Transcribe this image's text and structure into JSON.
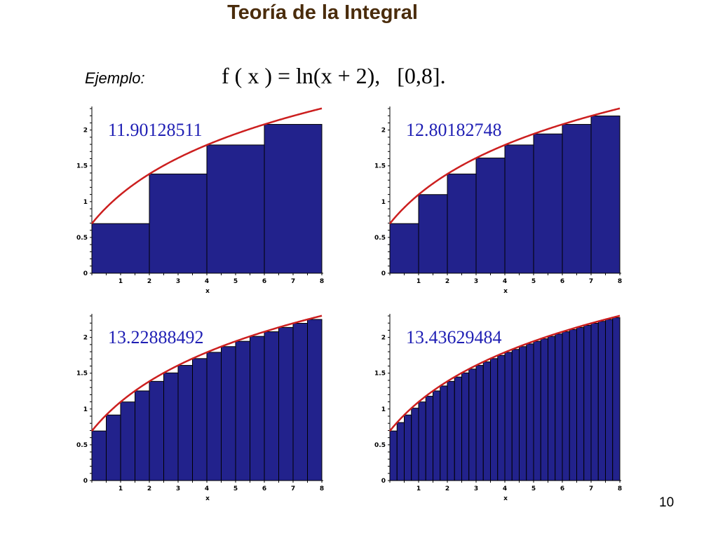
{
  "title": "Teoría de la Integral",
  "example_label": "Ejemplo:",
  "formula": "f ( x ) = ln(x + 2),   [0,8].",
  "slide_number": "10",
  "colors": {
    "bar_fill": "#22228c",
    "bar_stroke": "#000000",
    "curve": "#cc1f1f",
    "sum_text": "#1f1fb4",
    "title": "#4a2c0c"
  },
  "chart_data": [
    {
      "type": "bar",
      "subintervals": 4,
      "x": [
        0,
        2,
        4,
        6
      ],
      "values": [
        0.6931,
        1.3863,
        1.7918,
        2.0794
      ],
      "sum_label": "11.90128511",
      "curve": "ln(x+2)",
      "xlim": [
        0,
        8
      ],
      "ylim": [
        0,
        2.3
      ],
      "xticks": [
        "1",
        "2",
        "3",
        "4",
        "5",
        "6",
        "7",
        "8"
      ],
      "yticks": [
        "0",
        "0.5",
        "1",
        "1.5",
        "2"
      ],
      "xlabel": "x"
    },
    {
      "type": "bar",
      "subintervals": 8,
      "x": [
        0,
        1,
        2,
        3,
        4,
        5,
        6,
        7
      ],
      "values": [
        0.6931,
        1.0986,
        1.3863,
        1.6094,
        1.7918,
        1.9459,
        2.0794,
        2.1972
      ],
      "sum_label": "12.80182748",
      "curve": "ln(x+2)",
      "xlim": [
        0,
        8
      ],
      "ylim": [
        0,
        2.3
      ],
      "xticks": [
        "1",
        "2",
        "3",
        "4",
        "5",
        "6",
        "7",
        "8"
      ],
      "yticks": [
        "0",
        "0.5",
        "1",
        "1.5",
        "2"
      ],
      "xlabel": "x"
    },
    {
      "type": "bar",
      "subintervals": 16,
      "x": [
        0,
        0.5,
        1,
        1.5,
        2,
        2.5,
        3,
        3.5,
        4,
        4.5,
        5,
        5.5,
        6,
        6.5,
        7,
        7.5
      ],
      "values": [
        0.6931,
        0.9163,
        1.0986,
        1.2528,
        1.3863,
        1.5041,
        1.6094,
        1.7047,
        1.7918,
        1.8718,
        1.9459,
        2.0149,
        2.0794,
        2.1401,
        2.1972,
        2.2513
      ],
      "sum_label": "13.22888492",
      "curve": "ln(x+2)",
      "xlim": [
        0,
        8
      ],
      "ylim": [
        0,
        2.3
      ],
      "xticks": [
        "1",
        "2",
        "3",
        "4",
        "5",
        "6",
        "7",
        "8"
      ],
      "yticks": [
        "0",
        "0.5",
        "1",
        "1.5",
        "2"
      ],
      "xlabel": "x"
    },
    {
      "type": "bar",
      "subintervals": 32,
      "x": [
        0,
        0.25,
        0.5,
        0.75,
        1,
        1.25,
        1.5,
        1.75,
        2,
        2.25,
        2.5,
        2.75,
        3,
        3.25,
        3.5,
        3.75,
        4,
        4.25,
        4.5,
        4.75,
        5,
        5.25,
        5.5,
        5.75,
        6,
        6.25,
        6.5,
        6.75,
        7,
        7.25,
        7.5,
        7.75
      ],
      "values": [
        0.6931,
        0.8109,
        0.9163,
        1.0116,
        1.0986,
        1.1787,
        1.2528,
        1.3218,
        1.3863,
        1.4469,
        1.5041,
        1.5581,
        1.6094,
        1.6582,
        1.7047,
        1.7492,
        1.7918,
        1.8326,
        1.8718,
        1.9095,
        1.9459,
        1.981,
        2.0149,
        2.0477,
        2.0794,
        2.1102,
        2.1401,
        2.1691,
        2.1972,
        2.2246,
        2.2513,
        2.2773
      ],
      "sum_label": "13.43629484",
      "curve": "ln(x+2)",
      "xlim": [
        0,
        8
      ],
      "ylim": [
        0,
        2.3
      ],
      "xticks": [
        "1",
        "2",
        "3",
        "4",
        "5",
        "6",
        "7",
        "8"
      ],
      "yticks": [
        "0",
        "0.5",
        "1",
        "1.5",
        "2"
      ],
      "xlabel": "x"
    }
  ]
}
